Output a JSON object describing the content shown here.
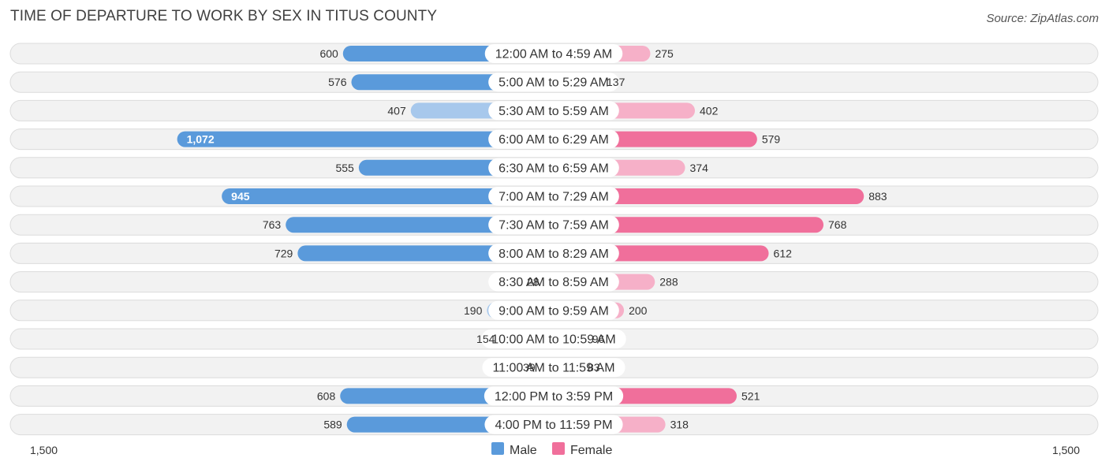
{
  "header": {
    "title": "TIME OF DEPARTURE TO WORK BY SEX IN TITUS COUNTY",
    "source": "Source: ZipAtlas.com"
  },
  "colors": {
    "male_strong": "#5a9adb",
    "male_light": "#a7c8ec",
    "female_strong": "#f06f9b",
    "female_light": "#f6b0c8",
    "row_bg": "#f2f2f2",
    "row_border": "#dcdcdc"
  },
  "chart_data": {
    "type": "bar",
    "orientation": "horizontal-diverging",
    "title": "TIME OF DEPARTURE TO WORK BY SEX IN TITUS COUNTY",
    "categories": [
      "12:00 AM to 4:59 AM",
      "5:00 AM to 5:29 AM",
      "5:30 AM to 5:59 AM",
      "6:00 AM to 6:29 AM",
      "6:30 AM to 6:59 AM",
      "7:00 AM to 7:29 AM",
      "7:30 AM to 7:59 AM",
      "8:00 AM to 8:29 AM",
      "8:30 AM to 8:59 AM",
      "9:00 AM to 9:59 AM",
      "10:00 AM to 10:59 AM",
      "11:00 AM to 11:59 AM",
      "12:00 PM to 3:59 PM",
      "4:00 PM to 11:59 PM"
    ],
    "series": [
      {
        "name": "Male",
        "values": [
          600,
          576,
          407,
          1072,
          555,
          945,
          763,
          729,
          28,
          190,
          154,
          39,
          608,
          589
        ],
        "labels": [
          "600",
          "576",
          "407",
          "1,072",
          "555",
          "945",
          "763",
          "729",
          "28",
          "190",
          "154",
          "39",
          "608",
          "589"
        ]
      },
      {
        "name": "Female",
        "values": [
          275,
          137,
          402,
          579,
          374,
          883,
          768,
          612,
          288,
          200,
          96,
          83,
          521,
          318
        ],
        "labels": [
          "275",
          "137",
          "402",
          "579",
          "374",
          "883",
          "768",
          "612",
          "288",
          "200",
          "96",
          "83",
          "521",
          "318"
        ]
      }
    ],
    "xlim": [
      -1500,
      1500
    ],
    "axis_labels": {
      "left": "1,500",
      "right": "1,500"
    },
    "legend": {
      "position": "bottom-center",
      "entries": [
        "Male",
        "Female"
      ]
    }
  }
}
